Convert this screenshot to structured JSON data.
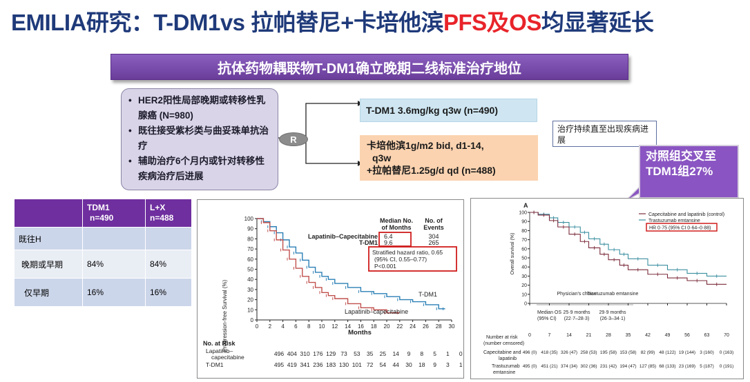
{
  "title": {
    "part1": "EMILIA研究：T-DM1vs 拉帕替尼+卡培他滨",
    "highlight1": "PFS",
    "part2": "及",
    "highlight2": "OS",
    "part3": "均显著延长"
  },
  "banner": "抗体药物耦联物T-DM1确立晚期二线标准治疗地位",
  "criteria": [
    "HER2阳性局部晚期或转移性乳腺癌 (N=980)",
    "既往接受紫杉类与曲妥珠单抗治疗",
    "辅助治疗6个月内或针对转移性疾病治疗后进展"
  ],
  "randomization": "R",
  "arms": {
    "tdm1": "T-DM1 3.6mg/kg q3w (n=490)",
    "lx_line1": "卡培他滨1g/m2 bid, d1-14,",
    "lx_line2": "q3w",
    "lx_line3": "+拉帕替尼1.25g/d qd (n=488)"
  },
  "continue_note": "治疗持续直至出现疾病进展",
  "callout": "对照组交叉至TDM1组27%",
  "table": {
    "headers": [
      "",
      "TDM1 n=490",
      "L+X n=488"
    ],
    "header_col1_a": "TDM1",
    "header_col1_b": "n=490",
    "header_col2_a": "L+X",
    "header_col2_b": "n=488",
    "rows": [
      [
        "既往H",
        "",
        ""
      ],
      [
        "晚期或早期",
        "84%",
        "84%"
      ],
      [
        "仅早期",
        "16%",
        "16%"
      ]
    ]
  },
  "pfs": {
    "ylabel": "Progression-free Survival (%)",
    "xlabel": "Months",
    "yticks": [
      0,
      10,
      20,
      30,
      40,
      50,
      60,
      70,
      80,
      90,
      100
    ],
    "xticks": [
      0,
      2,
      4,
      6,
      8,
      10,
      12,
      14,
      16,
      18,
      20,
      22,
      24,
      26,
      28,
      30
    ],
    "legend_header_median": "Median No.",
    "legend_header_median2": "of Months",
    "legend_header_events": "No. of",
    "legend_header_events2": "Events",
    "legend_lx_name": "Lapatinib–Capecitabine",
    "legend_lx_median": "6.4",
    "legend_lx_events": "304",
    "legend_tdm1_name": "T-DM1",
    "legend_tdm1_median": "9.6",
    "legend_tdm1_events": "265",
    "hr_line1": "Stratified hazard ratio, 0.65",
    "hr_line2": "(95% CI, 0.55–0.77)",
    "hr_line3": "P<0.001",
    "curve_label_tdm1": "T-DM1",
    "curve_label_lx": "Lapatinib–capecitabine",
    "at_risk_title": "No. at Risk",
    "at_risk_lx_label1": "Lapatinib–",
    "at_risk_lx_label2": "capecitabine",
    "at_risk_tdm1_label": "T-DM1",
    "at_risk_lx": [
      "496",
      "404",
      "310",
      "176",
      "129",
      "73",
      "53",
      "35",
      "25",
      "14",
      "9",
      "8",
      "5",
      "1",
      "0",
      "0"
    ],
    "at_risk_tdm1": [
      "495",
      "419",
      "341",
      "236",
      "183",
      "130",
      "101",
      "72",
      "54",
      "44",
      "30",
      "18",
      "9",
      "3",
      "1",
      "0"
    ]
  },
  "os": {
    "panel_label": "A",
    "ylabel": "Overall survival (%)",
    "yticks": [
      0,
      10,
      20,
      30,
      40,
      50,
      60,
      70,
      80,
      90,
      100
    ],
    "xticks": [
      0,
      7,
      14,
      21,
      28,
      35,
      42,
      49,
      56,
      63,
      70
    ],
    "legend_lx": "Capecitabine and lapatinib (control)",
    "legend_tdm1": "Trastuzumab emtansine",
    "hr": "HR 0·75 (95% CI 0·64–0·88)",
    "table_col1": "Physician's choice",
    "table_col2": "Trastuzumab emtansine",
    "table_row_label1": "Median OS",
    "table_row_label2": "(95% CI)",
    "table_v1a": "25·9 months",
    "table_v1b": "(22·7–28·3)",
    "table_v2a": "29·9 months",
    "table_v2b": "(26·3–34·1)",
    "at_risk_title1": "Number at risk",
    "at_risk_title2": "(number censored)",
    "at_risk_lx_label1": "Capecitabine and",
    "at_risk_lx_label2": "lapatinib",
    "at_risk_tdm1_label1": "Trastuzumab",
    "at_risk_tdm1_label2": "emtansine",
    "at_risk_lx": [
      "496 (0)",
      "418 (35)",
      "326 (47)",
      "258 (53)",
      "195 (58)",
      "153 (58)",
      "82 (99)",
      "48 (122)",
      "19 (144)",
      "3 (160)",
      "0 (163)"
    ],
    "at_risk_tdm1": [
      "495 (0)",
      "451 (21)",
      "374 (34)",
      "302 (36)",
      "231 (42)",
      "194 (47)",
      "127 (85)",
      "68 (133)",
      "23 (169)",
      "5 (187)",
      "0 (191)"
    ]
  },
  "colors": {
    "title": "#1f3a7a",
    "highlight": "#e8242a",
    "tdm1_curve": "#2a7fb5",
    "lx_curve": "#c0504d",
    "os_tdm1": "#3a8fa0",
    "os_lx": "#7a2a3a"
  },
  "chart_data": [
    {
      "type": "line",
      "title": "Progression-free Survival",
      "xlabel": "Months",
      "ylabel": "Progression-free Survival (%)",
      "xlim": [
        0,
        30
      ],
      "ylim": [
        0,
        100
      ],
      "series": [
        {
          "name": "T-DM1",
          "x": [
            0,
            1,
            2,
            3,
            4,
            5,
            6,
            7,
            8,
            9,
            10,
            11,
            12,
            14,
            16,
            18,
            20,
            22,
            24,
            26,
            28,
            29
          ],
          "y": [
            100,
            97,
            92,
            86,
            79,
            72,
            66,
            59,
            52,
            47,
            43,
            40,
            36,
            32,
            28,
            26,
            23,
            20,
            18,
            15,
            11,
            11
          ]
        },
        {
          "name": "Lapatinib–capecitabine",
          "x": [
            0,
            1,
            2,
            3,
            4,
            5,
            6,
            7,
            8,
            9,
            10,
            11,
            12,
            14,
            16,
            18,
            20,
            22
          ],
          "y": [
            100,
            96,
            88,
            79,
            69,
            60,
            51,
            43,
            37,
            32,
            27,
            24,
            21,
            16,
            12,
            10,
            7,
            7
          ]
        }
      ]
    },
    {
      "type": "line",
      "title": "Overall survival",
      "xlabel": "",
      "ylabel": "Overall survival (%)",
      "xlim": [
        0,
        70
      ],
      "ylim": [
        0,
        100
      ],
      "series": [
        {
          "name": "Trastuzumab emtansine",
          "x": [
            0,
            3,
            7,
            10,
            14,
            18,
            21,
            25,
            28,
            32,
            35,
            42,
            49,
            56,
            63,
            70
          ],
          "y": [
            100,
            98,
            94,
            89,
            84,
            78,
            71,
            65,
            59,
            54,
            49,
            42,
            37,
            33,
            30,
            30
          ]
        },
        {
          "name": "Capecitabine and lapatinib (control)",
          "x": [
            0,
            3,
            7,
            10,
            14,
            18,
            21,
            25,
            28,
            32,
            35,
            42,
            49,
            56,
            63,
            70
          ],
          "y": [
            100,
            97,
            91,
            84,
            76,
            68,
            61,
            54,
            48,
            42,
            37,
            32,
            28,
            25,
            21,
            21
          ]
        }
      ]
    }
  ]
}
